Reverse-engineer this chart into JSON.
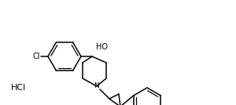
{
  "background_color": "#ffffff",
  "line_color": "#000000",
  "text_color": "#000000",
  "hcl_label": "HCl",
  "ho_label": "HO",
  "cl_label": "Cl",
  "n_label": "N",
  "figsize": [
    3.0,
    1.34
  ],
  "dpi": 100
}
